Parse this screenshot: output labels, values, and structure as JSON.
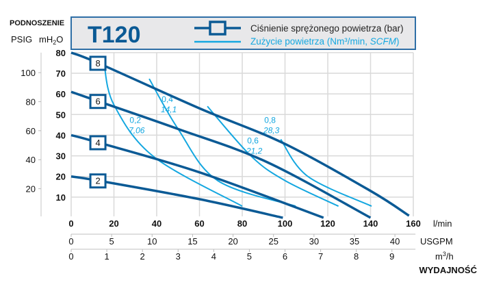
{
  "chart_data": {
    "type": "line",
    "title": "T120",
    "y_axis_title": "PODNOSZENIE",
    "y_units": {
      "psig": "PSIG",
      "mh2o_main": "mH",
      "mh2o_sub": "2",
      "mh2o_end": "O"
    },
    "x_axis_title": "WYDAJNOŚĆ",
    "xlim": [
      0,
      160
    ],
    "ylim": [
      0,
      80
    ],
    "grid": true,
    "legend": {
      "placement": "top",
      "pressure_label": "Ciśnienie sprężonego powietrza (bar)",
      "air_label": "Zużycie powietrza (Nm³/min, ",
      "air_label_italic": "SCFM",
      "air_label_end": ")"
    },
    "x_axes": [
      {
        "unit": "l/min",
        "ticks": [
          "0",
          "20",
          "40",
          "60",
          "80",
          "100",
          "120",
          "140",
          "160"
        ],
        "factor": 1
      },
      {
        "unit": "USGPM",
        "ticks": [
          "0",
          "5",
          "10",
          "15",
          "20",
          "25",
          "30",
          "35",
          "40"
        ],
        "factor": 3.785
      },
      {
        "unit_main": "m",
        "unit_sup": "3",
        "unit_end": "/h",
        "ticks": [
          "0",
          "1",
          "2",
          "3",
          "4",
          "5",
          "6",
          "7",
          "8",
          "9"
        ],
        "factor": 16.667
      }
    ],
    "y_axes": [
      {
        "unit": "mH2O",
        "ticks": [
          "10",
          "20",
          "30",
          "40",
          "50",
          "60",
          "70",
          "80"
        ]
      },
      {
        "unit": "PSIG",
        "ticks": [
          "20",
          "40",
          "60",
          "80",
          "100"
        ],
        "factor": 0.703
      }
    ],
    "pressure_series": [
      {
        "name": "8",
        "points": [
          [
            0,
            80
          ],
          [
            12.5,
            75
          ],
          [
            60,
            53
          ],
          [
            99.5,
            36
          ],
          [
            140,
            13
          ],
          [
            158,
            1
          ]
        ],
        "label_at": [
          12.5,
          75
        ]
      },
      {
        "name": "6",
        "points": [
          [
            0,
            61
          ],
          [
            12.5,
            56.5
          ],
          [
            50,
            43
          ],
          [
            91.5,
            27
          ],
          [
            140,
            0
          ]
        ],
        "label_at": [
          12.5,
          56.5
        ]
      },
      {
        "name": "4",
        "points": [
          [
            0,
            40
          ],
          [
            12.5,
            36.5
          ],
          [
            60,
            22
          ],
          [
            118,
            0
          ]
        ],
        "label_at": [
          12.5,
          36.5
        ]
      },
      {
        "name": "2",
        "points": [
          [
            0,
            20
          ],
          [
            12.5,
            18
          ],
          [
            60,
            9
          ],
          [
            99,
            0
          ]
        ],
        "label_at": [
          12.5,
          18
        ]
      }
    ],
    "air_series": [
      {
        "name": "0,2",
        "scfm": "7,06",
        "points": [
          [
            15.4,
            74.6
          ],
          [
            20,
            54.7
          ],
          [
            38.7,
            29.5
          ],
          [
            80,
            5.6
          ]
        ],
        "label_at": [
          30,
          46
        ]
      },
      {
        "name": "0,4",
        "scfm": "14,1",
        "points": [
          [
            36.5,
            67.3
          ],
          [
            50,
            43
          ],
          [
            68.5,
            18
          ],
          [
            105,
            5.6
          ]
        ],
        "label_at": [
          45,
          56
        ]
      },
      {
        "name": "0,6",
        "scfm": "21,2",
        "points": [
          [
            63.7,
            54
          ],
          [
            84,
            30
          ],
          [
            100,
            18
          ],
          [
            125,
            5.6
          ]
        ],
        "label_at": [
          85,
          36
        ]
      },
      {
        "name": "0,8",
        "scfm": "28,3",
        "points": [
          [
            98,
            38
          ],
          [
            110.7,
            20
          ],
          [
            140.5,
            5.6
          ]
        ],
        "label_at": [
          93,
          46
        ]
      }
    ]
  },
  "colors": {
    "pressure": "#0b5a95",
    "air": "#14a7e0",
    "grid": "#d9d9d9",
    "header_bg": "#e8e8ea",
    "header_border": "#2e6ea6"
  }
}
